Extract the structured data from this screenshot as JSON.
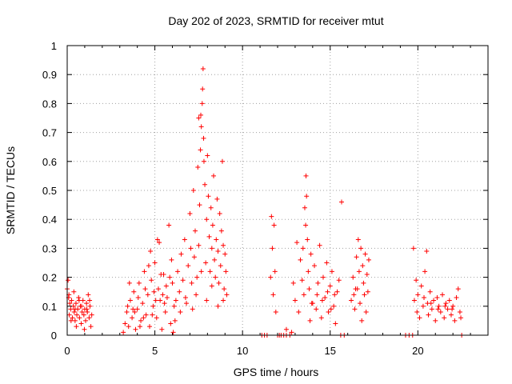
{
  "chart_data": {
    "type": "scatter",
    "title": "Day 202 of 2023, SRMTID for receiver mtut",
    "xlabel": "GPS time / hours",
    "ylabel": "SRMTID / TECUs",
    "xlim": [
      0,
      24
    ],
    "ylim": [
      0,
      1
    ],
    "xticks": [
      0,
      5,
      10,
      15,
      20
    ],
    "yticks": [
      0,
      0.1,
      0.2,
      0.3,
      0.4,
      0.5,
      0.6,
      0.7,
      0.8,
      0.9,
      1
    ],
    "xtick_labels": [
      "0",
      "5",
      "10",
      "15",
      "20"
    ],
    "ytick_labels": [
      "0",
      "0.1",
      "0.2",
      "0.3",
      "0.4",
      "0.5",
      "0.6",
      "0.7",
      "0.8",
      "0.9",
      "1"
    ],
    "grid": true,
    "marker": "+",
    "color": "#ff0000",
    "series": [
      {
        "name": "SRMTID",
        "points": [
          [
            0.0,
            0.16
          ],
          [
            0.05,
            0.19
          ],
          [
            0.1,
            0.14
          ],
          [
            0.12,
            0.07
          ],
          [
            0.15,
            0.11
          ],
          [
            0.2,
            0.09
          ],
          [
            0.25,
            0.12
          ],
          [
            0.3,
            0.06
          ],
          [
            0.35,
            0.1
          ],
          [
            0.4,
            0.08
          ],
          [
            0.45,
            0.05
          ],
          [
            0.5,
            0.11
          ],
          [
            0.55,
            0.07
          ],
          [
            0.6,
            0.09
          ],
          [
            0.65,
            0.13
          ],
          [
            0.7,
            0.06
          ],
          [
            0.75,
            0.1
          ],
          [
            0.8,
            0.04
          ],
          [
            0.85,
            0.08
          ],
          [
            0.9,
            0.12
          ],
          [
            0.95,
            0.07
          ],
          [
            1.0,
            0.09
          ],
          [
            1.05,
            0.05
          ],
          [
            1.1,
            0.11
          ],
          [
            1.15,
            0.08
          ],
          [
            1.2,
            0.14
          ],
          [
            1.25,
            0.06
          ],
          [
            1.3,
            0.1
          ],
          [
            1.35,
            0.03
          ],
          [
            1.4,
            0.07
          ],
          [
            0.08,
            0.13
          ],
          [
            0.22,
            0.05
          ],
          [
            0.38,
            0.15
          ],
          [
            0.52,
            0.03
          ],
          [
            0.68,
            0.12
          ],
          [
            0.82,
            0.1
          ],
          [
            0.98,
            0.02
          ],
          [
            1.12,
            0.09
          ],
          [
            1.28,
            0.12
          ],
          [
            0.45,
            0.09
          ],
          [
            3.2,
            0.01
          ],
          [
            3.3,
            0.04
          ],
          [
            3.4,
            0.08
          ],
          [
            3.5,
            0.03
          ],
          [
            3.6,
            0.12
          ],
          [
            3.7,
            0.06
          ],
          [
            3.8,
            0.15
          ],
          [
            3.9,
            0.02
          ],
          [
            4.0,
            0.09
          ],
          [
            4.1,
            0.18
          ],
          [
            4.2,
            0.05
          ],
          [
            4.3,
            0.11
          ],
          [
            4.4,
            0.22
          ],
          [
            4.5,
            0.07
          ],
          [
            4.6,
            0.14
          ],
          [
            4.7,
            0.03
          ],
          [
            4.8,
            0.19
          ],
          [
            4.9,
            0.1
          ],
          [
            5.0,
            0.25
          ],
          [
            5.1,
            0.06
          ],
          [
            5.2,
            0.16
          ],
          [
            5.3,
            0.12
          ],
          [
            5.4,
            0.02
          ],
          [
            5.5,
            0.21
          ],
          [
            5.6,
            0.08
          ],
          [
            5.7,
            0.13
          ],
          [
            5.8,
            0.38
          ],
          [
            5.9,
            0.04
          ],
          [
            6.0,
            0.18
          ],
          [
            6.1,
            0.1
          ],
          [
            3.45,
            0.1
          ],
          [
            3.75,
            0.09
          ],
          [
            4.05,
            0.13
          ],
          [
            4.35,
            0.06
          ],
          [
            4.65,
            0.24
          ],
          [
            4.95,
            0.15
          ],
          [
            5.25,
            0.32
          ],
          [
            5.55,
            0.11
          ],
          [
            5.85,
            0.2
          ],
          [
            6.15,
            0.05
          ],
          [
            3.55,
            0.18
          ],
          [
            3.85,
            0.08
          ],
          [
            4.15,
            0.03
          ],
          [
            4.45,
            0.16
          ],
          [
            4.75,
            0.29
          ],
          [
            5.05,
            0.12
          ],
          [
            5.35,
            0.21
          ],
          [
            5.65,
            0.17
          ],
          [
            5.95,
            0.26
          ],
          [
            6.05,
            0.01
          ],
          [
            5.15,
            0.33
          ],
          [
            4.85,
            0.07
          ],
          [
            5.45,
            0.14
          ],
          [
            6.2,
            0.12
          ],
          [
            6.3,
            0.22
          ],
          [
            6.4,
            0.15
          ],
          [
            6.5,
            0.28
          ],
          [
            6.6,
            0.19
          ],
          [
            6.7,
            0.33
          ],
          [
            6.8,
            0.11
          ],
          [
            6.9,
            0.24
          ],
          [
            7.0,
            0.42
          ],
          [
            7.05,
            0.3
          ],
          [
            7.1,
            0.18
          ],
          [
            7.2,
            0.5
          ],
          [
            7.25,
            0.27
          ],
          [
            7.3,
            0.36
          ],
          [
            7.4,
            0.2
          ],
          [
            7.45,
            0.58
          ],
          [
            7.5,
            0.31
          ],
          [
            7.55,
            0.45
          ],
          [
            7.6,
            0.64
          ],
          [
            7.62,
            0.76
          ],
          [
            7.65,
            0.72
          ],
          [
            7.7,
            0.8
          ],
          [
            7.72,
            0.85
          ],
          [
            7.75,
            0.92
          ],
          [
            7.78,
            0.68
          ],
          [
            7.8,
            0.6
          ],
          [
            7.85,
            0.52
          ],
          [
            7.9,
            0.25
          ],
          [
            7.95,
            0.4
          ],
          [
            8.0,
            0.62
          ],
          [
            8.05,
            0.48
          ],
          [
            8.1,
            0.34
          ],
          [
            8.15,
            0.22
          ],
          [
            8.2,
            0.44
          ],
          [
            8.25,
            0.3
          ],
          [
            8.3,
            0.38
          ],
          [
            8.35,
            0.55
          ],
          [
            8.4,
            0.26
          ],
          [
            8.45,
            0.2
          ],
          [
            8.5,
            0.33
          ],
          [
            8.55,
            0.47
          ],
          [
            8.6,
            0.29
          ],
          [
            8.65,
            0.18
          ],
          [
            8.7,
            0.42
          ],
          [
            8.75,
            0.24
          ],
          [
            8.8,
            0.36
          ],
          [
            8.85,
            0.6
          ],
          [
            8.9,
            0.31
          ],
          [
            8.95,
            0.16
          ],
          [
            9.0,
            0.28
          ],
          [
            9.05,
            0.22
          ],
          [
            9.1,
            0.14
          ],
          [
            6.45,
            0.08
          ],
          [
            6.75,
            0.13
          ],
          [
            7.15,
            0.09
          ],
          [
            7.35,
            0.14
          ],
          [
            7.65,
            0.22
          ],
          [
            7.95,
            0.12
          ],
          [
            8.25,
            0.17
          ],
          [
            8.6,
            0.1
          ],
          [
            8.9,
            0.12
          ],
          [
            7.5,
            0.75
          ],
          [
            11.1,
            0.0
          ],
          [
            11.25,
            0.0
          ],
          [
            11.4,
            0.0
          ],
          [
            11.6,
            0.2
          ],
          [
            11.65,
            0.41
          ],
          [
            11.7,
            0.3
          ],
          [
            11.75,
            0.14
          ],
          [
            11.8,
            0.38
          ],
          [
            11.85,
            0.22
          ],
          [
            11.9,
            0.08
          ],
          [
            12.0,
            0.0
          ],
          [
            12.1,
            0.0
          ],
          [
            12.2,
            0.0
          ],
          [
            12.35,
            0.0
          ],
          [
            12.5,
            0.0
          ],
          [
            12.5,
            0.02
          ],
          [
            12.7,
            0.0
          ],
          [
            12.8,
            0.01
          ],
          [
            12.9,
            0.18
          ],
          [
            13.0,
            0.12
          ],
          [
            13.1,
            0.32
          ],
          [
            13.2,
            0.08
          ],
          [
            13.3,
            0.26
          ],
          [
            13.4,
            0.19
          ],
          [
            13.45,
            0.3
          ],
          [
            13.5,
            0.14
          ],
          [
            13.55,
            0.44
          ],
          [
            13.6,
            0.38
          ],
          [
            13.62,
            0.55
          ],
          [
            13.65,
            0.48
          ],
          [
            13.7,
            0.33
          ],
          [
            13.75,
            0.22
          ],
          [
            13.8,
            0.16
          ],
          [
            13.85,
            0.05
          ],
          [
            13.9,
            0.28
          ],
          [
            14.0,
            0.11
          ],
          [
            14.1,
            0.24
          ],
          [
            14.2,
            0.09
          ],
          [
            14.3,
            0.18
          ],
          [
            14.4,
            0.31
          ],
          [
            14.5,
            0.06
          ],
          [
            14.6,
            0.2
          ],
          [
            14.7,
            0.13
          ],
          [
            14.8,
            0.25
          ],
          [
            14.9,
            0.08
          ],
          [
            15.0,
            0.17
          ],
          [
            15.1,
            0.22
          ],
          [
            15.2,
            0.1
          ],
          [
            15.3,
            0.04
          ],
          [
            15.4,
            0.15
          ],
          [
            15.5,
            0.19
          ],
          [
            15.6,
            0.0
          ],
          [
            15.8,
            0.0
          ],
          [
            15.65,
            0.46
          ],
          [
            14.55,
            0.12
          ],
          [
            14.85,
            0.15
          ],
          [
            14.25,
            0.14
          ],
          [
            13.95,
            0.11
          ],
          [
            15.25,
            0.14
          ],
          [
            15.05,
            0.09
          ],
          [
            16.2,
            0.12
          ],
          [
            16.3,
            0.2
          ],
          [
            16.4,
            0.09
          ],
          [
            16.5,
            0.27
          ],
          [
            16.55,
            0.16
          ],
          [
            16.6,
            0.33
          ],
          [
            16.65,
            0.22
          ],
          [
            16.7,
            0.11
          ],
          [
            16.75,
            0.3
          ],
          [
            16.8,
            0.05
          ],
          [
            16.85,
            0.24
          ],
          [
            16.9,
            0.18
          ],
          [
            16.95,
            0.14
          ],
          [
            17.0,
            0.28
          ],
          [
            17.05,
            0.08
          ],
          [
            17.1,
            0.21
          ],
          [
            17.15,
            0.15
          ],
          [
            17.2,
            0.26
          ],
          [
            16.45,
            0.16
          ],
          [
            16.35,
            0.14
          ],
          [
            19.3,
            0.0
          ],
          [
            19.5,
            0.0
          ],
          [
            19.7,
            0.0
          ],
          [
            19.75,
            0.3
          ],
          [
            19.8,
            0.12
          ],
          [
            19.9,
            0.19
          ],
          [
            19.95,
            0.08
          ],
          [
            20.0,
            0.14
          ],
          [
            20.1,
            0.06
          ],
          [
            20.2,
            0.17
          ],
          [
            20.3,
            0.1
          ],
          [
            20.4,
            0.22
          ],
          [
            20.5,
            0.29
          ],
          [
            20.55,
            0.11
          ],
          [
            20.6,
            0.07
          ],
          [
            20.7,
            0.15
          ],
          [
            20.8,
            0.09
          ],
          [
            20.9,
            0.12
          ],
          [
            21.0,
            0.05
          ],
          [
            21.1,
            0.13
          ],
          [
            21.2,
            0.1
          ],
          [
            21.3,
            0.08
          ],
          [
            21.4,
            0.14
          ],
          [
            21.5,
            0.06
          ],
          [
            21.6,
            0.11
          ],
          [
            21.7,
            0.09
          ],
          [
            21.8,
            0.12
          ],
          [
            21.9,
            0.07
          ],
          [
            22.0,
            0.1
          ],
          [
            22.1,
            0.05
          ],
          [
            22.2,
            0.13
          ],
          [
            22.3,
            0.16
          ],
          [
            22.4,
            0.08
          ],
          [
            22.5,
            0.0
          ],
          [
            22.45,
            0.06
          ],
          [
            20.35,
            0.13
          ],
          [
            20.75,
            0.11
          ],
          [
            21.15,
            0.09
          ],
          [
            21.55,
            0.1
          ],
          [
            21.95,
            0.09
          ]
        ]
      }
    ]
  }
}
